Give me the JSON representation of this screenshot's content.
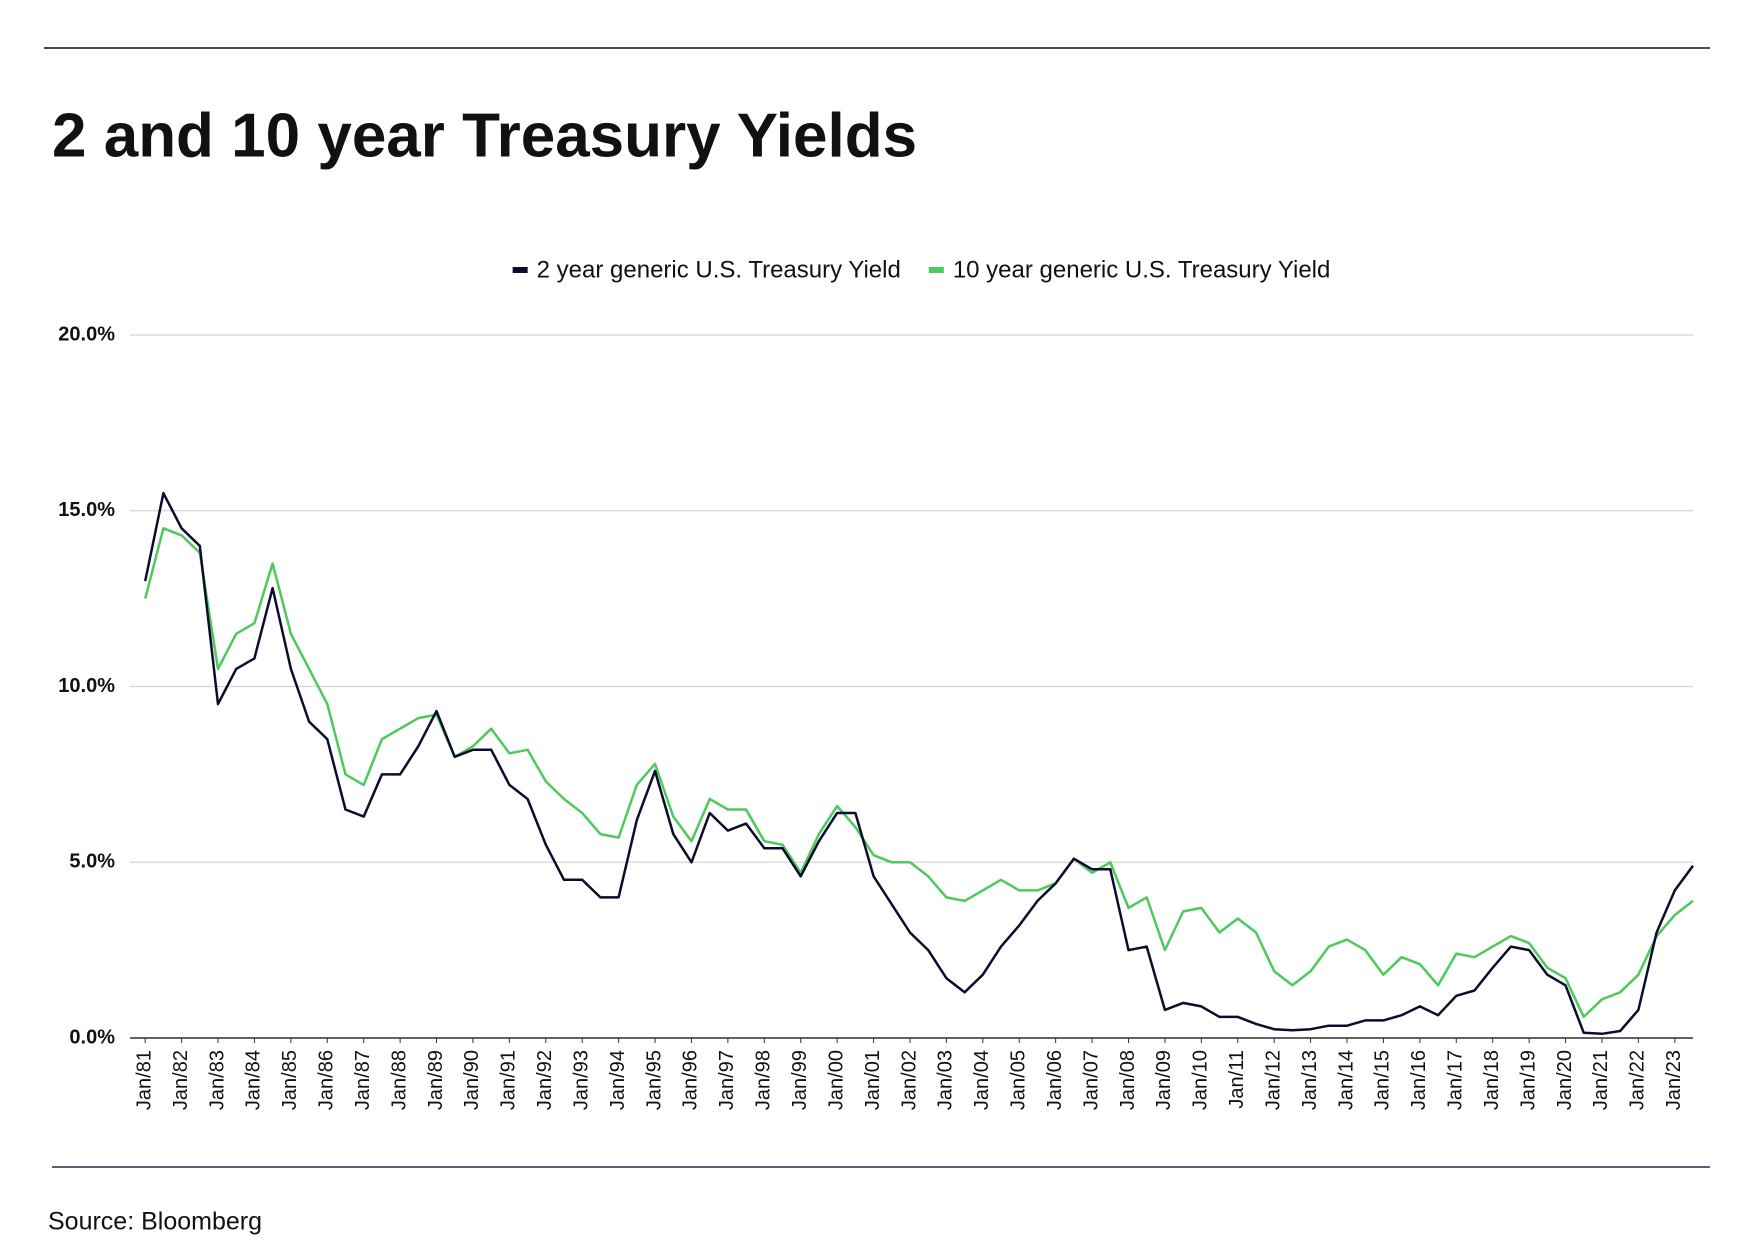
{
  "chart_data": {
    "type": "line",
    "title": "2 and 10 year Treasury Yields",
    "source": "Source: Bloomberg",
    "x": [
      "1981-01",
      "1981-07",
      "1982-01",
      "1982-07",
      "1983-01",
      "1983-07",
      "1984-01",
      "1984-07",
      "1985-01",
      "1985-07",
      "1986-01",
      "1986-07",
      "1987-01",
      "1987-07",
      "1988-01",
      "1988-07",
      "1989-01",
      "1989-07",
      "1990-01",
      "1990-07",
      "1991-01",
      "1991-07",
      "1992-01",
      "1992-07",
      "1993-01",
      "1993-07",
      "1994-01",
      "1994-07",
      "1995-01",
      "1995-07",
      "1996-01",
      "1996-07",
      "1997-01",
      "1997-07",
      "1998-01",
      "1998-07",
      "1999-01",
      "1999-07",
      "2000-01",
      "2000-07",
      "2001-01",
      "2001-07",
      "2002-01",
      "2002-07",
      "2003-01",
      "2003-07",
      "2004-01",
      "2004-07",
      "2005-01",
      "2005-07",
      "2006-01",
      "2006-07",
      "2007-01",
      "2007-07",
      "2008-01",
      "2008-07",
      "2009-01",
      "2009-07",
      "2010-01",
      "2010-07",
      "2011-01",
      "2011-07",
      "2012-01",
      "2012-07",
      "2013-01",
      "2013-07",
      "2014-01",
      "2014-07",
      "2015-01",
      "2015-07",
      "2016-01",
      "2016-07",
      "2017-01",
      "2017-07",
      "2018-01",
      "2018-07",
      "2019-01",
      "2019-07",
      "2020-01",
      "2020-07",
      "2021-01",
      "2021-07",
      "2022-01",
      "2022-07",
      "2023-01",
      "2023-07"
    ],
    "series": [
      {
        "name": "2 year generic U.S. Treasury Yield",
        "color": "#0c0c2c",
        "values": [
          13.0,
          15.5,
          14.5,
          14.0,
          9.5,
          10.5,
          10.8,
          12.8,
          10.5,
          9.0,
          8.5,
          6.5,
          6.3,
          7.5,
          7.5,
          8.3,
          9.3,
          8.0,
          8.2,
          8.2,
          7.2,
          6.8,
          5.5,
          4.5,
          4.5,
          4.0,
          4.0,
          6.2,
          7.6,
          5.8,
          5.0,
          6.4,
          5.9,
          6.1,
          5.4,
          5.4,
          4.6,
          5.6,
          6.4,
          6.4,
          4.6,
          3.8,
          3.0,
          2.5,
          1.7,
          1.3,
          1.8,
          2.6,
          3.2,
          3.9,
          4.4,
          5.1,
          4.8,
          4.8,
          2.5,
          2.6,
          0.8,
          1.0,
          0.9,
          0.6,
          0.6,
          0.4,
          0.25,
          0.22,
          0.25,
          0.35,
          0.35,
          0.5,
          0.5,
          0.65,
          0.9,
          0.65,
          1.2,
          1.35,
          2.0,
          2.6,
          2.5,
          1.8,
          1.5,
          0.15,
          0.12,
          0.2,
          0.8,
          3.0,
          4.2,
          4.9
        ]
      },
      {
        "name": "10 year generic U.S. Treasury Yield",
        "color": "#4cca5c",
        "values": [
          12.5,
          14.5,
          14.3,
          13.8,
          10.5,
          11.5,
          11.8,
          13.5,
          11.5,
          10.5,
          9.5,
          7.5,
          7.2,
          8.5,
          8.8,
          9.1,
          9.2,
          8.0,
          8.3,
          8.8,
          8.1,
          8.2,
          7.3,
          6.8,
          6.4,
          5.8,
          5.7,
          7.2,
          7.8,
          6.3,
          5.6,
          6.8,
          6.5,
          6.5,
          5.6,
          5.5,
          4.7,
          5.8,
          6.6,
          6.0,
          5.2,
          5.0,
          5.0,
          4.6,
          4.0,
          3.9,
          4.2,
          4.5,
          4.2,
          4.2,
          4.4,
          5.1,
          4.7,
          5.0,
          3.7,
          4.0,
          2.5,
          3.6,
          3.7,
          3.0,
          3.4,
          3.0,
          1.9,
          1.5,
          1.9,
          2.6,
          2.8,
          2.5,
          1.8,
          2.3,
          2.1,
          1.5,
          2.4,
          2.3,
          2.6,
          2.9,
          2.7,
          2.0,
          1.7,
          0.6,
          1.1,
          1.3,
          1.8,
          2.9,
          3.5,
          3.9
        ]
      }
    ],
    "xlim": [
      "1980-08",
      "2023-07"
    ],
    "xticks": [
      {
        "value": "1981-01",
        "label": "Jan/81"
      },
      {
        "value": "1982-01",
        "label": "Jan/82"
      },
      {
        "value": "1983-01",
        "label": "Jan/83"
      },
      {
        "value": "1984-01",
        "label": "Jan/84"
      },
      {
        "value": "1985-01",
        "label": "Jan/85"
      },
      {
        "value": "1986-01",
        "label": "Jan/86"
      },
      {
        "value": "1987-01",
        "label": "Jan/87"
      },
      {
        "value": "1988-01",
        "label": "Jan/88"
      },
      {
        "value": "1989-01",
        "label": "Jan/89"
      },
      {
        "value": "1990-01",
        "label": "Jan/90"
      },
      {
        "value": "1991-01",
        "label": "Jan/91"
      },
      {
        "value": "1992-01",
        "label": "Jan/92"
      },
      {
        "value": "1993-01",
        "label": "Jan/93"
      },
      {
        "value": "1994-01",
        "label": "Jan/94"
      },
      {
        "value": "1995-01",
        "label": "Jan/95"
      },
      {
        "value": "1996-01",
        "label": "Jan/96"
      },
      {
        "value": "1997-01",
        "label": "Jan/97"
      },
      {
        "value": "1998-01",
        "label": "Jan/98"
      },
      {
        "value": "1999-01",
        "label": "Jan/99"
      },
      {
        "value": "2000-01",
        "label": "Jan/00"
      },
      {
        "value": "2001-01",
        "label": "Jan/01"
      },
      {
        "value": "2002-01",
        "label": "Jan/02"
      },
      {
        "value": "2003-01",
        "label": "Jan/03"
      },
      {
        "value": "2004-01",
        "label": "Jan/04"
      },
      {
        "value": "2005-01",
        "label": "Jan/05"
      },
      {
        "value": "2006-01",
        "label": "Jan/06"
      },
      {
        "value": "2007-01",
        "label": "Jan/07"
      },
      {
        "value": "2008-01",
        "label": "Jan/08"
      },
      {
        "value": "2009-01",
        "label": "Jan/09"
      },
      {
        "value": "2010-01",
        "label": "Jan/10"
      },
      {
        "value": "2011-01",
        "label": "Jan/11"
      },
      {
        "value": "2012-01",
        "label": "Jan/12"
      },
      {
        "value": "2013-01",
        "label": "Jan/13"
      },
      {
        "value": "2014-01",
        "label": "Jan/14"
      },
      {
        "value": "2015-01",
        "label": "Jan/15"
      },
      {
        "value": "2016-01",
        "label": "Jan/16"
      },
      {
        "value": "2017-01",
        "label": "Jan/17"
      },
      {
        "value": "2018-01",
        "label": "Jan/18"
      },
      {
        "value": "2019-01",
        "label": "Jan/19"
      },
      {
        "value": "2020-01",
        "label": "Jan/20"
      },
      {
        "value": "2021-01",
        "label": "Jan/21"
      },
      {
        "value": "2022-01",
        "label": "Jan/22"
      },
      {
        "value": "2023-01",
        "label": "Jan/23"
      }
    ],
    "ylim": [
      0,
      20
    ],
    "yticks": [
      {
        "value": 0,
        "label": "0.0%"
      },
      {
        "value": 5,
        "label": "5.0%"
      },
      {
        "value": 10,
        "label": "10.0%"
      },
      {
        "value": 15,
        "label": "15.0%"
      },
      {
        "value": 20,
        "label": "20.0%"
      }
    ],
    "grid": true,
    "legend": "top"
  }
}
